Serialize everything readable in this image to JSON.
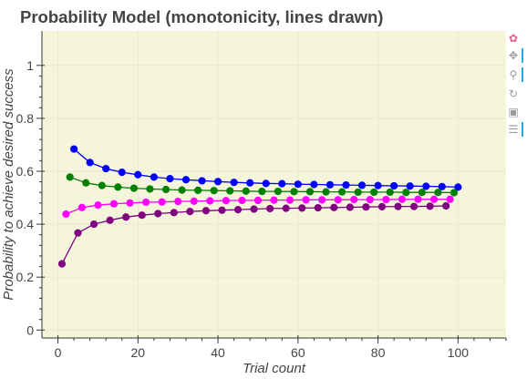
{
  "chart_data": {
    "type": "line",
    "title": "Probability Model (monotonicity, lines drawn)",
    "xlabel": "Trial count",
    "ylabel": "Probability to achieve desired success",
    "xlim": [
      -4,
      112
    ],
    "ylim": [
      -0.03,
      1.13
    ],
    "xticks": [
      0,
      20,
      40,
      60,
      80,
      100
    ],
    "yticks": [
      0,
      0.2,
      0.4,
      0.6,
      0.8,
      1
    ],
    "grid": true,
    "background": "#f5f5dc",
    "series": [
      {
        "color": "#0000ff",
        "x": [
          4,
          8,
          12,
          16,
          20,
          24,
          28,
          32,
          36,
          40,
          44,
          48,
          52,
          56,
          60,
          64,
          68,
          72,
          76,
          80,
          84,
          88,
          92,
          96,
          100
        ],
        "y": [
          0.684,
          0.633,
          0.61,
          0.596,
          0.587,
          0.578,
          0.572,
          0.568,
          0.564,
          0.561,
          0.558,
          0.556,
          0.554,
          0.553,
          0.551,
          0.55,
          0.549,
          0.548,
          0.547,
          0.546,
          0.545,
          0.544,
          0.543,
          0.542,
          0.54
        ]
      },
      {
        "color": "#008000",
        "x": [
          3,
          7,
          11,
          15,
          19,
          23,
          27,
          31,
          35,
          39,
          43,
          47,
          51,
          55,
          59,
          63,
          67,
          71,
          75,
          79,
          83,
          87,
          91,
          95,
          99
        ],
        "y": [
          0.578,
          0.556,
          0.546,
          0.54,
          0.536,
          0.533,
          0.531,
          0.529,
          0.528,
          0.527,
          0.526,
          0.525,
          0.524,
          0.524,
          0.523,
          0.523,
          0.522,
          0.522,
          0.521,
          0.521,
          0.521,
          0.52,
          0.52,
          0.52,
          0.519
        ]
      },
      {
        "color": "#ff00ff",
        "x": [
          2,
          6,
          10,
          14,
          18,
          22,
          26,
          30,
          34,
          38,
          42,
          46,
          50,
          54,
          58,
          62,
          66,
          70,
          74,
          78,
          82,
          86,
          90,
          94,
          98
        ],
        "y": [
          0.438,
          0.463,
          0.472,
          0.477,
          0.48,
          0.483,
          0.484,
          0.486,
          0.487,
          0.488,
          0.489,
          0.49,
          0.49,
          0.491,
          0.491,
          0.492,
          0.492,
          0.492,
          0.493,
          0.493,
          0.493,
          0.494,
          0.494,
          0.494,
          0.494
        ]
      },
      {
        "color": "#800080",
        "x": [
          1,
          5,
          9,
          13,
          17,
          21,
          25,
          29,
          33,
          37,
          41,
          45,
          49,
          53,
          57,
          61,
          65,
          69,
          73,
          77,
          81,
          85,
          89,
          93,
          97
        ],
        "y": [
          0.25,
          0.367,
          0.4,
          0.415,
          0.427,
          0.434,
          0.44,
          0.444,
          0.448,
          0.451,
          0.453,
          0.455,
          0.457,
          0.459,
          0.46,
          0.461,
          0.462,
          0.463,
          0.464,
          0.465,
          0.466,
          0.467,
          0.467,
          0.468,
          0.469
        ]
      }
    ]
  },
  "toolbar": {
    "tools": [
      {
        "icon": "bokeh-logo-icon",
        "glyph": "✿"
      },
      {
        "icon": "pan-icon",
        "glyph": "✥"
      },
      {
        "icon": "box-zoom-icon",
        "glyph": "⚲"
      },
      {
        "icon": "reset-icon",
        "glyph": "↻"
      },
      {
        "icon": "save-icon",
        "glyph": "▣"
      },
      {
        "icon": "hover-icon",
        "glyph": "☰"
      }
    ]
  }
}
